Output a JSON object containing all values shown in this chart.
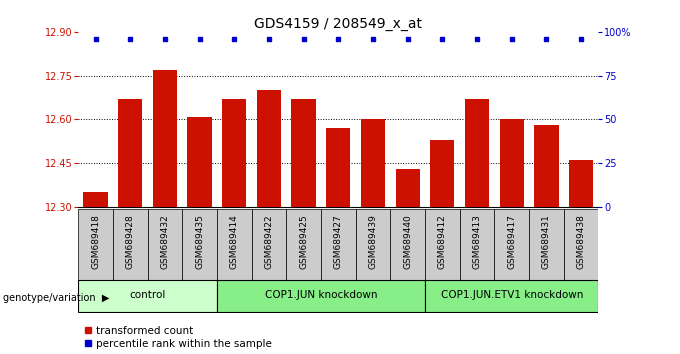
{
  "title": "GDS4159 / 208549_x_at",
  "samples": [
    "GSM689418",
    "GSM689428",
    "GSM689432",
    "GSM689435",
    "GSM689414",
    "GSM689422",
    "GSM689425",
    "GSM689427",
    "GSM689439",
    "GSM689440",
    "GSM689412",
    "GSM689413",
    "GSM689417",
    "GSM689431",
    "GSM689438"
  ],
  "values": [
    12.35,
    12.67,
    12.77,
    12.61,
    12.67,
    12.7,
    12.67,
    12.57,
    12.6,
    12.43,
    12.53,
    12.67,
    12.6,
    12.58,
    12.46
  ],
  "percentile_rank": [
    100,
    100,
    100,
    100,
    100,
    100,
    100,
    100,
    100,
    100,
    100,
    100,
    100,
    100,
    100
  ],
  "ylim_left": [
    12.3,
    12.9
  ],
  "ylim_right": [
    0,
    100
  ],
  "yticks_left": [
    12.3,
    12.45,
    12.6,
    12.75,
    12.9
  ],
  "yticks_right": [
    0,
    25,
    50,
    75,
    100
  ],
  "ytick_labels_right": [
    "0",
    "25",
    "50",
    "75",
    "100%"
  ],
  "bar_color": "#cc1100",
  "dot_color": "#0000cc",
  "group_defs": [
    [
      0,
      4,
      "control"
    ],
    [
      4,
      10,
      "COP1.JUN knockdown"
    ],
    [
      10,
      15,
      "COP1.JUN.ETV1 knockdown"
    ]
  ],
  "group_colors": [
    "#ccffcc",
    "#88ee88",
    "#88ee88"
  ],
  "xlabel_left": "genotype/variation",
  "legend_red_label": "transformed count",
  "legend_blue_label": "percentile rank within the sample",
  "title_fontsize": 10,
  "tick_fontsize": 7,
  "label_fontsize": 6.5,
  "group_fontsize": 7.5,
  "axis_color_left": "#cc1100",
  "axis_color_right": "#0000cc",
  "sample_box_color": "#cccccc"
}
